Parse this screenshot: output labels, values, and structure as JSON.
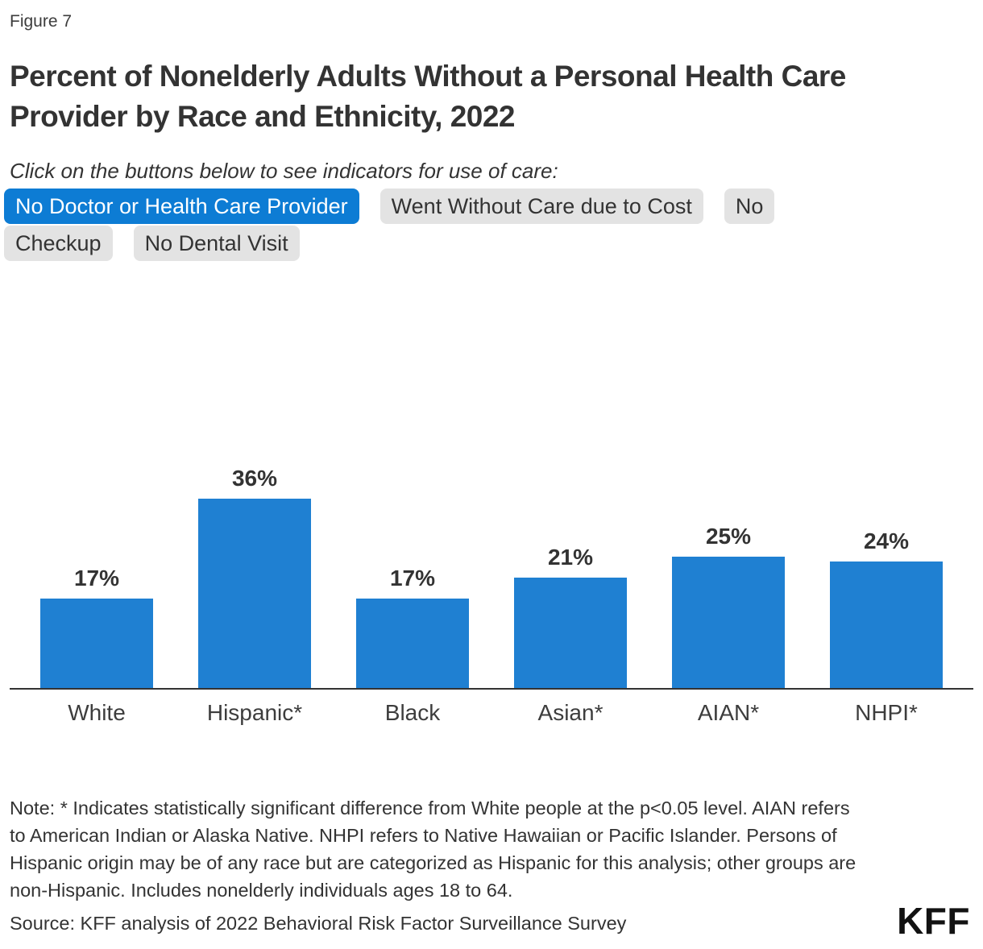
{
  "figure_label": "Figure 7",
  "title": "Percent of Nonelderly Adults Without a Personal Health Care Provider by Race and Ethnicity, 2022",
  "filters": {
    "prompt": "Click on the buttons below to see indicators for use of care:",
    "buttons": [
      {
        "label": "No Doctor or Health Care Provider",
        "active": true
      },
      {
        "label": "Went Without Care due to Cost",
        "active": false
      },
      {
        "label": "No Checkup",
        "active": false,
        "fragments": [
          "No",
          "Checkup"
        ]
      },
      {
        "label": "No Dental Visit",
        "active": false
      }
    ]
  },
  "chart_data": {
    "type": "bar",
    "categories": [
      "White",
      "Hispanic*",
      "Black",
      "Asian*",
      "AIAN*",
      "NHPI*"
    ],
    "values": [
      17,
      36,
      17,
      21,
      25,
      24
    ],
    "value_labels": [
      "17%",
      "36%",
      "17%",
      "21%",
      "25%",
      "24%"
    ],
    "title": "Percent of Nonelderly Adults Without a Personal Health Care Provider by Race and Ethnicity, 2022",
    "xlabel": "",
    "ylabel": "",
    "ylim": [
      0,
      46
    ],
    "grid": false,
    "legend": "none",
    "data_labels_position": "above bars",
    "bar_color": "#1f80d2"
  },
  "note": "Note: * Indicates statistically significant difference from White people at the p<0.05 level. AIAN refers to American Indian or Alaska Native. NHPI refers to Native Hawaiian or Pacific Islander. Persons of Hispanic origin may be of any race but are categorized as Hispanic for this analysis; other groups are non-Hispanic. Includes nonelderly individuals ages 18 to 64.",
  "source": "Source: KFF analysis of 2022 Behavioral Risk Factor Surveillance Survey",
  "logo_text": "KFF",
  "colors": {
    "active_button_blue": "#0d7cd4",
    "bar_blue": "#1f80d2",
    "inactive_button_gray": "#e3e3e3",
    "text_dark": "#333333",
    "axis_line": "#333333"
  }
}
